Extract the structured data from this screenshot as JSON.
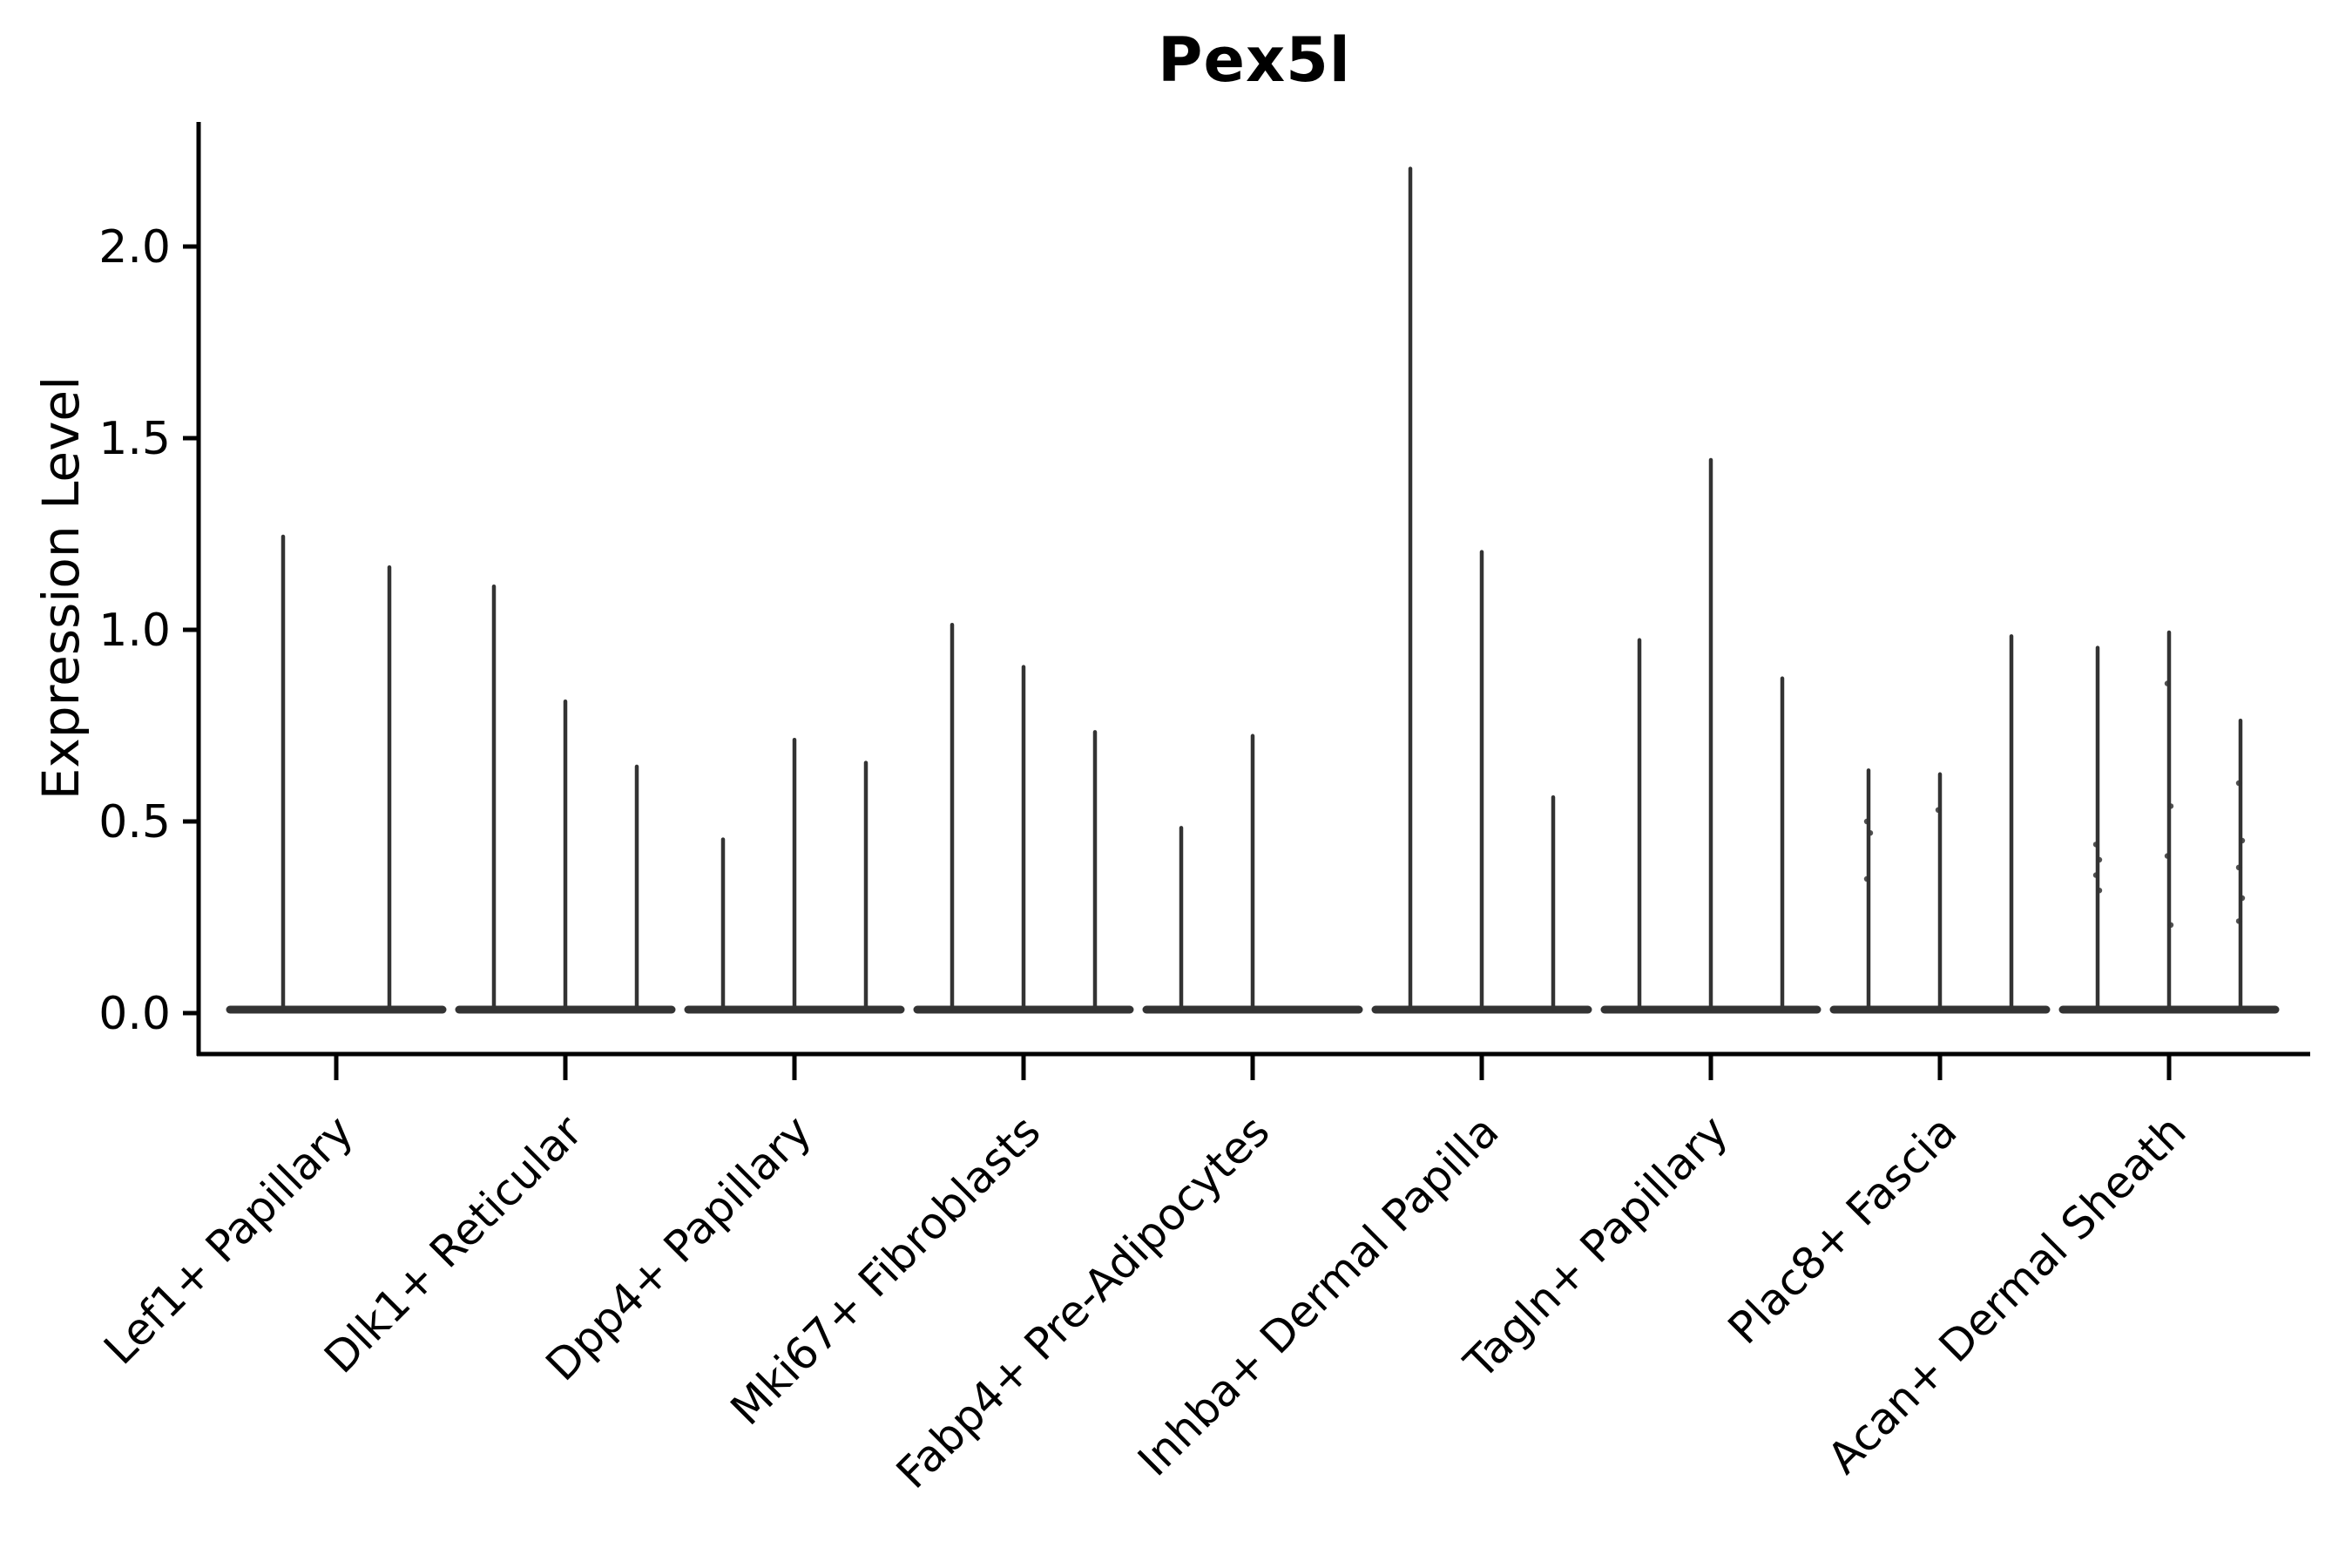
{
  "title": "Pex5l",
  "ylabel": "Expression Level",
  "colors": {
    "violin": "#333333",
    "axis": "#000000",
    "background": "#ffffff",
    "text": "#000000"
  },
  "chart_data": {
    "type": "violin",
    "title": "Pex5l",
    "xlabel": "",
    "ylabel": "Expression Level",
    "ytick_labels": [
      "0.0",
      "0.5",
      "1.0",
      "1.5",
      "2.0"
    ],
    "ytick_values": [
      0.0,
      0.5,
      1.0,
      1.5,
      2.0
    ],
    "ylim": [
      -0.11,
      2.32
    ],
    "grid": false,
    "legend": "none",
    "x_label_rotation_deg": 45,
    "categories": [
      "Lef1+ Papillary",
      "Dlk1+ Reticular",
      "Dpp4+ Papillary",
      "Mki67+ Fibroblasts",
      "Fabp4+ Pre-Adipocytes",
      "Inhba+ Dermal Papilla",
      "Tagln+ Papillary",
      "Plac8+ Fascia",
      "Acan+ Dermal Sheath"
    ],
    "groups": [
      {
        "label": "Lef1+ Papillary",
        "violins": [
          {
            "max": 1.25,
            "dots": []
          },
          {
            "max": 1.17,
            "dots": []
          }
        ]
      },
      {
        "label": "Dlk1+ Reticular",
        "violins": [
          {
            "max": 1.12,
            "dots": []
          },
          {
            "max": 0.82,
            "dots": []
          },
          {
            "max": 0.65,
            "dots": []
          }
        ]
      },
      {
        "label": "Dpp4+ Papillary",
        "violins": [
          {
            "max": 0.46,
            "dots": []
          },
          {
            "max": 0.72,
            "dots": []
          },
          {
            "max": 0.66,
            "dots": []
          }
        ]
      },
      {
        "label": "Mki67+ Fibroblasts",
        "violins": [
          {
            "max": 1.02,
            "dots": []
          },
          {
            "max": 0.91,
            "dots": []
          },
          {
            "max": 0.74,
            "dots": []
          }
        ]
      },
      {
        "label": "Fabp4+ Pre-Adipocytes",
        "violins": [
          {
            "max": 0.49,
            "dots": []
          },
          {
            "max": 0.73,
            "dots": []
          },
          {
            "max": 0.0,
            "dots": []
          }
        ]
      },
      {
        "label": "Inhba+ Dermal Papilla",
        "violins": [
          {
            "max": 2.21,
            "dots": []
          },
          {
            "max": 1.21,
            "dots": []
          },
          {
            "max": 0.57,
            "dots": []
          }
        ]
      },
      {
        "label": "Tagln+ Papillary",
        "violins": [
          {
            "max": 0.98,
            "dots": []
          },
          {
            "max": 1.45,
            "dots": []
          },
          {
            "max": 0.88,
            "dots": []
          }
        ]
      },
      {
        "label": "Plac8+ Fascia",
        "violins": [
          {
            "max": 0.64,
            "dots": [
              0.5,
              0.47,
              0.35
            ]
          },
          {
            "max": 0.63,
            "dots": [
              0.53
            ]
          },
          {
            "max": 0.99,
            "dots": []
          }
        ]
      },
      {
        "label": "Acan+ Dermal Sheath",
        "violins": [
          {
            "max": 0.96,
            "dots": [
              0.44,
              0.4,
              0.36,
              0.32
            ]
          },
          {
            "max": 1.0,
            "dots": [
              0.86,
              0.54,
              0.41,
              0.23
            ]
          },
          {
            "max": 0.77,
            "dots": [
              0.6,
              0.45,
              0.38,
              0.3,
              0.24
            ]
          }
        ]
      }
    ]
  }
}
